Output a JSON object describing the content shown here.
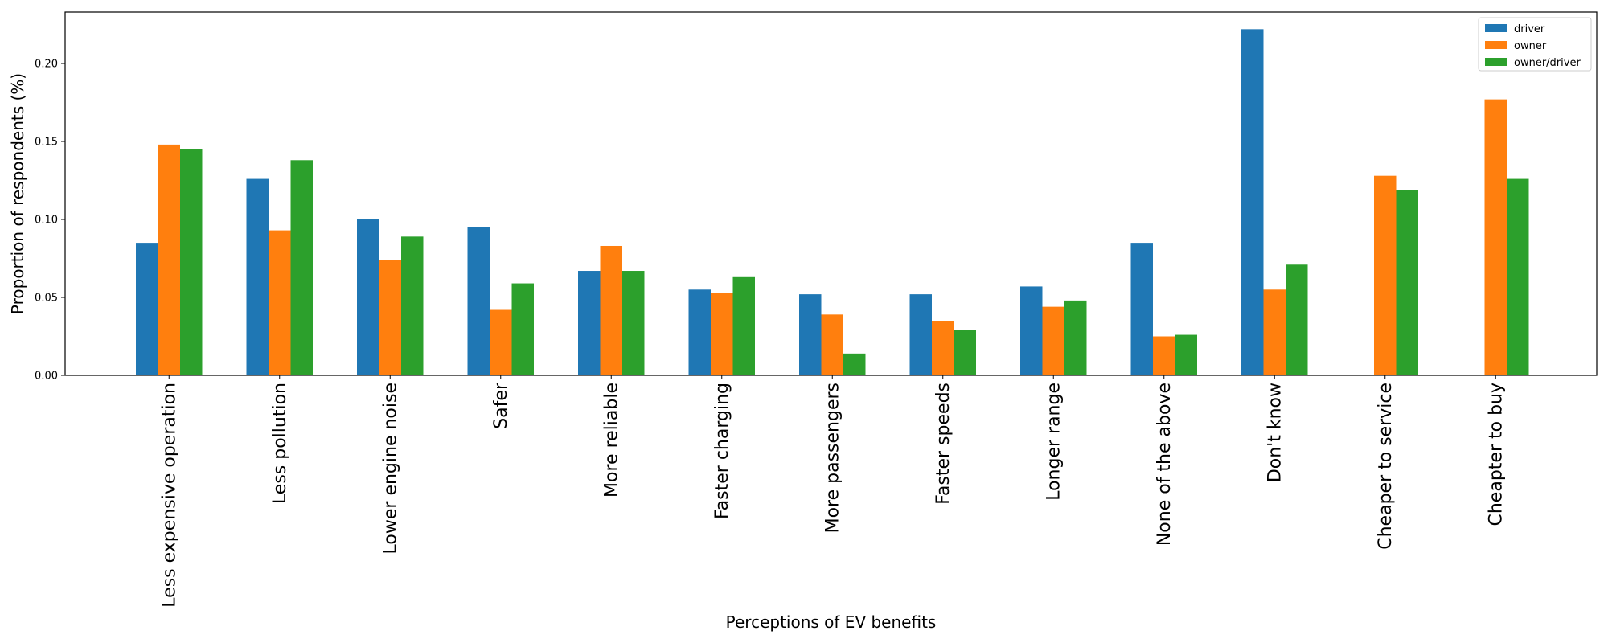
{
  "chart_data": {
    "type": "bar",
    "title": "",
    "xlabel": "Perceptions of EV benefits",
    "ylabel": "Proportion of respondents (%)",
    "ylim": [
      0,
      0.233
    ],
    "yticks": [
      0.0,
      0.05,
      0.1,
      0.15,
      0.2
    ],
    "ytick_labels": [
      "0.00",
      "0.05",
      "0.10",
      "0.15",
      "0.20"
    ],
    "grid": false,
    "legend_position": "top-right",
    "categories": [
      "Less expensive operation",
      "Less pollution",
      "Lower engine noise",
      "Safer",
      "More reliable",
      "Faster charging",
      "More passengers",
      "Faster speeds",
      "Longer range",
      "None of the above",
      "Don't know",
      "Cheaper to service",
      "Cheapter to buy"
    ],
    "series": [
      {
        "name": "driver",
        "color": "#1f77b4",
        "values": [
          0.085,
          0.126,
          0.1,
          0.095,
          0.067,
          0.055,
          0.052,
          0.052,
          0.057,
          0.085,
          0.222,
          null,
          null
        ]
      },
      {
        "name": "owner",
        "color": "#ff7f0e",
        "values": [
          0.148,
          0.093,
          0.074,
          0.042,
          0.083,
          0.053,
          0.039,
          0.035,
          0.044,
          0.025,
          0.055,
          0.128,
          0.177
        ]
      },
      {
        "name": "owner/driver",
        "color": "#2ca02c",
        "values": [
          0.145,
          0.138,
          0.089,
          0.059,
          0.067,
          0.063,
          0.014,
          0.029,
          0.048,
          0.026,
          0.071,
          0.119,
          0.126
        ]
      }
    ]
  }
}
